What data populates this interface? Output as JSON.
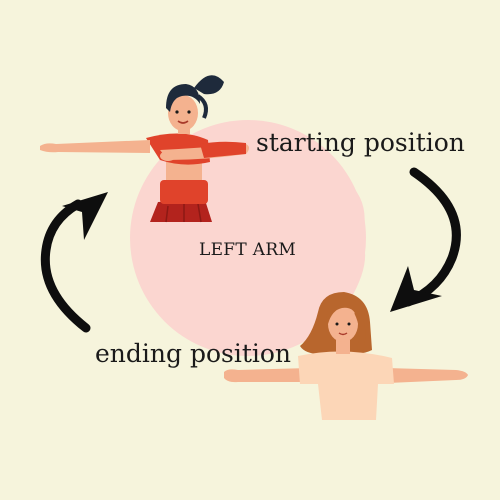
{
  "diagram": {
    "center_label": "LEFT ARM",
    "start_label": "starting position",
    "end_label": "ending position"
  },
  "colors": {
    "background": "#f6f4dc",
    "circle": "#fbd6d0",
    "arrow": "#0e0e0e",
    "text": "#1a1a1a",
    "skin": "#f4b28f",
    "top_red": "#e0432b",
    "skirt": "#b3231d",
    "hair_dark": "#1e2a3b",
    "hair_brown": "#b8662d",
    "shirt_peach": "#fcd6b7"
  }
}
